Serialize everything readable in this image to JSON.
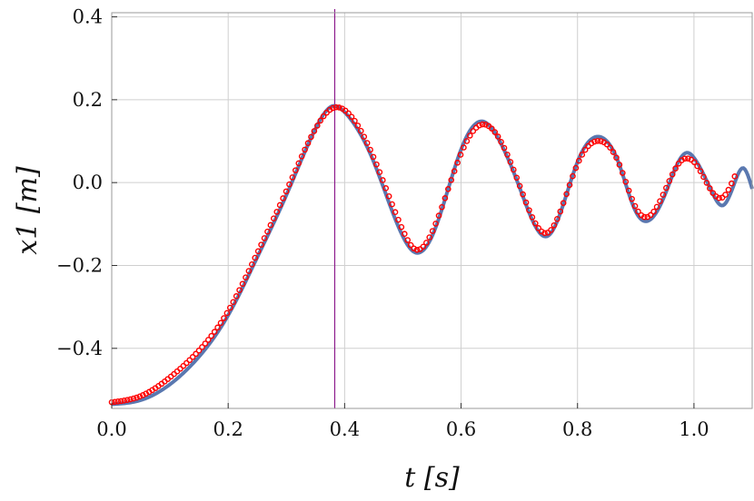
{
  "chart_data": {
    "type": "line",
    "title": "",
    "xlabel": "t [s]",
    "ylabel": "x1 [m]",
    "xlim": [
      0.0,
      1.1
    ],
    "ylim": [
      -0.545,
      0.41
    ],
    "grid": true,
    "xticks": [
      {
        "value": 0.0,
        "label": "0.0"
      },
      {
        "value": 0.2,
        "label": "0.2"
      },
      {
        "value": 0.4,
        "label": "0.4"
      },
      {
        "value": 0.6,
        "label": "0.6"
      },
      {
        "value": 0.8,
        "label": "0.8"
      },
      {
        "value": 1.0,
        "label": "1.0"
      }
    ],
    "yticks": [
      {
        "value": 0.4,
        "label": "0.4"
      },
      {
        "value": 0.2,
        "label": "0.2"
      },
      {
        "value": 0.0,
        "label": "0.0"
      },
      {
        "value": -0.2,
        "label": "−0.2"
      },
      {
        "value": -0.4,
        "label": "−0.4"
      }
    ],
    "vertical_marker": {
      "x": 0.383,
      "color": "#8b1a8b"
    },
    "series": [
      {
        "kind": "line",
        "color": "#5a78b0",
        "x": [
          0.0,
          0.05,
          0.1,
          0.15,
          0.2,
          0.25,
          0.3,
          0.35,
          0.38,
          0.4,
          0.45,
          0.5,
          0.52,
          0.55,
          0.6,
          0.635,
          0.67,
          0.7,
          0.75,
          0.8,
          0.84,
          0.87,
          0.9,
          0.92,
          0.95,
          0.98,
          0.99,
          1.0,
          1.03,
          1.05,
          1.07,
          1.085,
          1.1
        ],
        "y": [
          -0.535,
          -0.525,
          -0.487,
          -0.42,
          -0.32,
          -0.18,
          -0.03,
          0.13,
          0.185,
          0.17,
          0.05,
          -0.13,
          -0.168,
          -0.13,
          0.08,
          0.148,
          0.09,
          -0.01,
          -0.128,
          0.05,
          0.11,
          0.05,
          -0.07,
          -0.093,
          -0.03,
          0.065,
          0.072,
          0.06,
          -0.02,
          -0.055,
          0.0,
          0.035,
          -0.015
        ]
      },
      {
        "kind": "scatter",
        "color": "#ff0000",
        "x": [
          0.0,
          0.05,
          0.1,
          0.15,
          0.2,
          0.25,
          0.3,
          0.35,
          0.38,
          0.4,
          0.45,
          0.5,
          0.52,
          0.55,
          0.6,
          0.635,
          0.67,
          0.7,
          0.75,
          0.8,
          0.84,
          0.87,
          0.9,
          0.92,
          0.95,
          0.98,
          0.99,
          1.0,
          1.03,
          1.05,
          1.07
        ],
        "y": [
          -0.53,
          -0.515,
          -0.47,
          -0.405,
          -0.31,
          -0.17,
          -0.02,
          0.13,
          0.18,
          0.175,
          0.06,
          -0.115,
          -0.16,
          -0.12,
          0.07,
          0.14,
          0.095,
          -0.005,
          -0.12,
          0.045,
          0.1,
          0.05,
          -0.06,
          -0.083,
          -0.02,
          0.055,
          0.058,
          0.05,
          -0.02,
          -0.035,
          0.015
        ]
      }
    ]
  }
}
